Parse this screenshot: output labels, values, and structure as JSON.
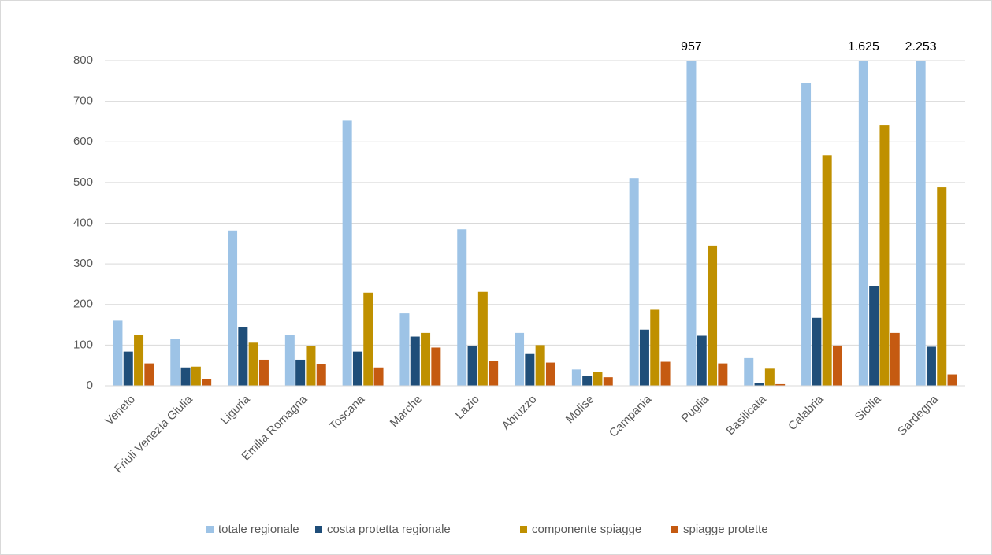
{
  "chart_data": {
    "type": "bar",
    "categories": [
      "Veneto",
      "Friuli Venezia Giulia",
      "Liguria",
      "Emilia Romagna",
      "Toscana",
      "Marche",
      "Lazio",
      "Abruzzo",
      "Molise",
      "Campania",
      "Puglia",
      "Basilicata",
      "Calabria",
      "Sicilia",
      "Sardegna"
    ],
    "series": [
      {
        "name": "totale regionale",
        "color": "#9dc3e6",
        "values": [
          160,
          115,
          382,
          124,
          652,
          178,
          385,
          130,
          40,
          511,
          957,
          68,
          745,
          1625,
          2253
        ],
        "value_labels": [
          null,
          null,
          null,
          null,
          null,
          null,
          null,
          null,
          null,
          null,
          "957",
          null,
          null,
          "1.625",
          "2.253"
        ]
      },
      {
        "name": "costa protetta regionale",
        "color": "#1f4e79",
        "values": [
          84,
          45,
          144,
          64,
          84,
          121,
          98,
          78,
          25,
          138,
          123,
          6,
          167,
          246,
          96
        ]
      },
      {
        "name": "componente spiagge",
        "color": "#bf9000",
        "values": [
          125,
          47,
          106,
          98,
          229,
          130,
          231,
          100,
          33,
          187,
          345,
          42,
          567,
          641,
          488
        ]
      },
      {
        "name": "spiagge protette",
        "color": "#c55a11",
        "values": [
          55,
          16,
          64,
          53,
          45,
          94,
          62,
          57,
          21,
          59,
          55,
          4,
          99,
          130,
          28
        ]
      }
    ],
    "ylim": [
      0,
      800
    ],
    "yticks": [
      0,
      100,
      200,
      300,
      400,
      500,
      600,
      700,
      800
    ],
    "grid": true,
    "legend": "bottom"
  }
}
